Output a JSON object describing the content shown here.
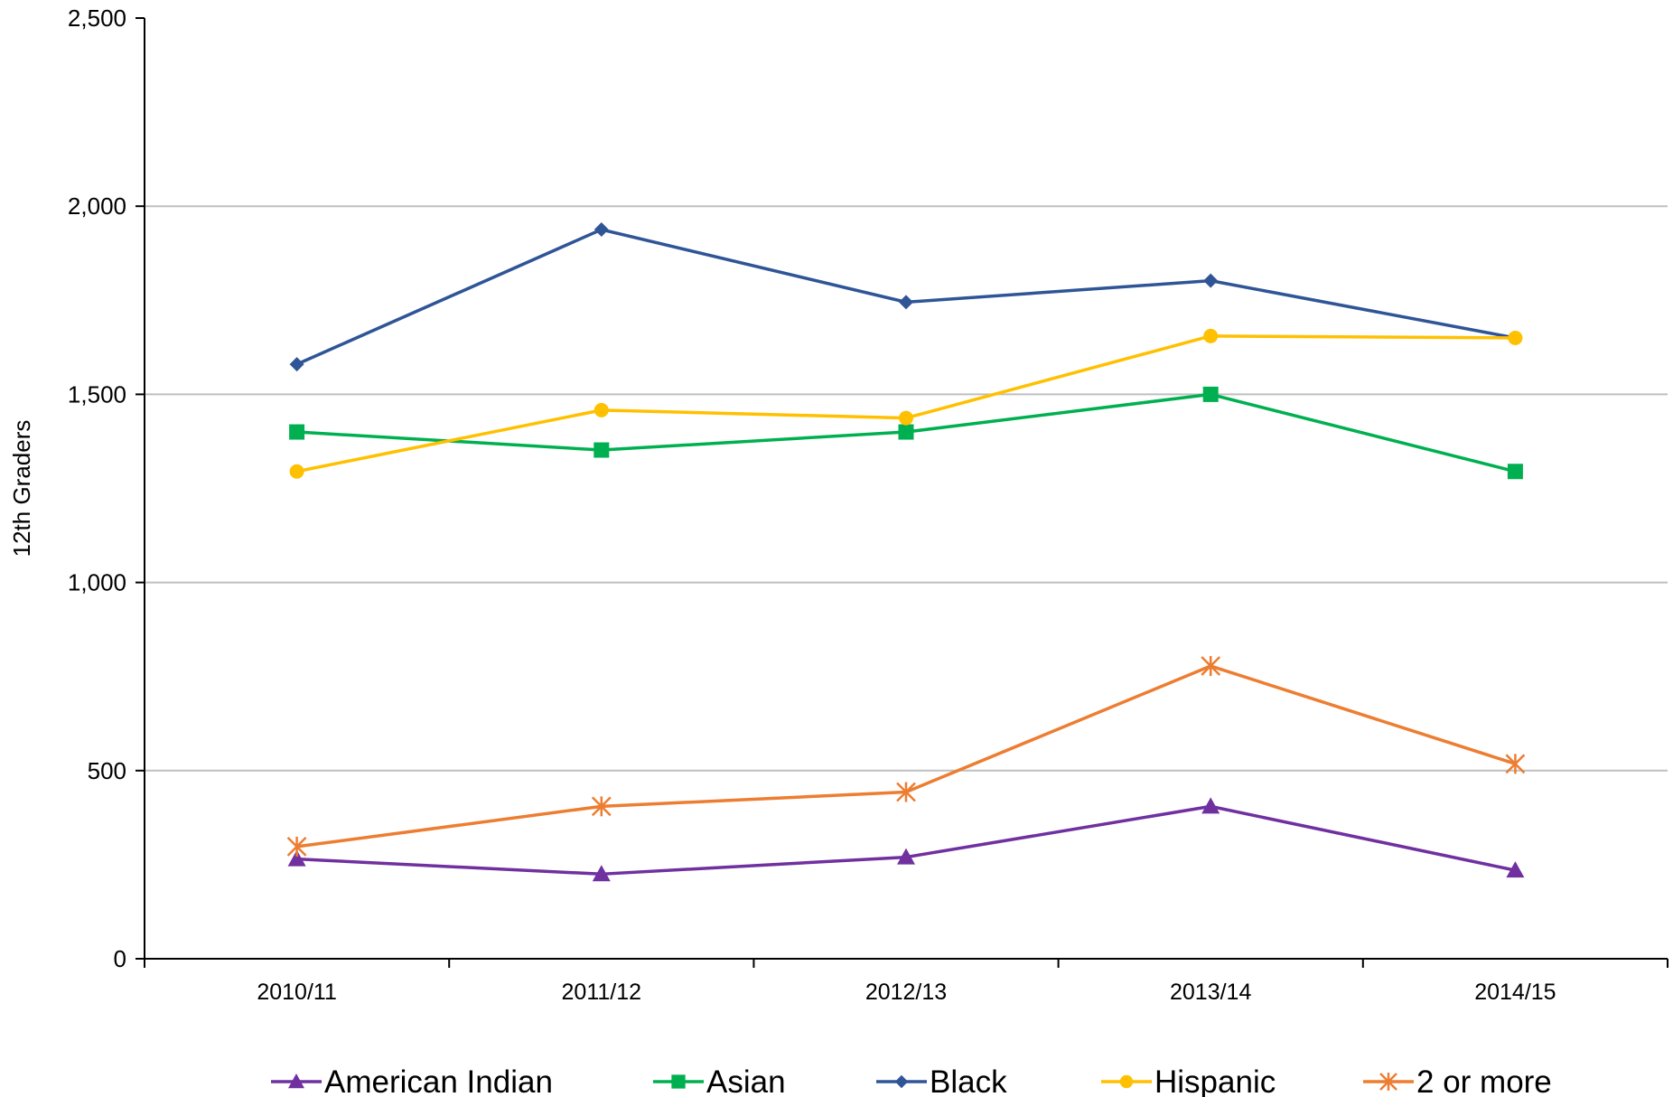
{
  "chart_data": {
    "type": "line",
    "title": "",
    "xlabel": "",
    "ylabel": "12th Graders",
    "categories": [
      "2010/11",
      "2011/12",
      "2012/13",
      "2013/14",
      "2014/15"
    ],
    "ylim": [
      0,
      2500
    ],
    "yticks": [
      0,
      500,
      1000,
      1500,
      2000,
      2500
    ],
    "ytick_labels": [
      "0",
      "500",
      "1,000",
      "1,500",
      "2,000",
      "2,500"
    ],
    "grid": true,
    "legend_position": "bottom",
    "series": [
      {
        "name": "American Indian",
        "values": [
          265,
          225,
          270,
          405,
          235
        ],
        "color": "#7030A0",
        "marker": "triangle"
      },
      {
        "name": "Asian",
        "values": [
          1400,
          1352,
          1400,
          1500,
          1295
        ],
        "color": "#00B050",
        "marker": "square"
      },
      {
        "name": "Black",
        "values": [
          1580,
          1938,
          1745,
          1802,
          1650
        ],
        "color": "#2F5597",
        "marker": "diamond"
      },
      {
        "name": "Hispanic",
        "values": [
          1295,
          1458,
          1437,
          1655,
          1650
        ],
        "color": "#FFC000",
        "marker": "circle"
      },
      {
        "name": "2 or more",
        "values": [
          298,
          405,
          443,
          778,
          518
        ],
        "color": "#ED7D31",
        "marker": "star"
      }
    ]
  }
}
